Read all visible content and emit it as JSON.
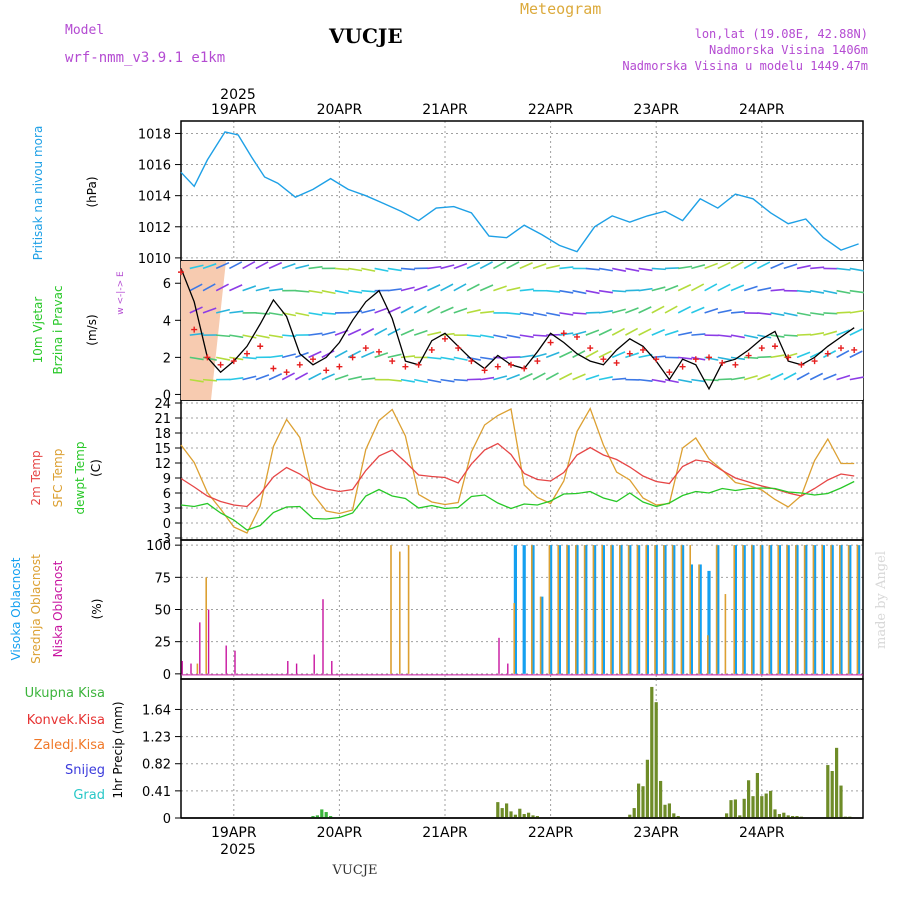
{
  "header": {
    "model_label": "Model",
    "model_name": "wrf-nmm_v3.9.1 e1km",
    "location": "VUCJE",
    "meteogram_label": "Meteogram",
    "coords": "lon,lat (19.08E, 42.88N)",
    "elevation": "Nadmorska Visina 1406m",
    "model_elevation": "Nadmorska Visina u modelu 1449.47m",
    "footer_location": "VUCJE",
    "credit": "made by Angel"
  },
  "colors": {
    "pressure": "#1ea0e6",
    "wind_speed": "#000000",
    "wind_dir": "#e61e1e",
    "t2m": "#e64646",
    "tsfc": "#dca032",
    "dewpt": "#28c828",
    "cloud_high": "#14a0f0",
    "cloud_mid": "#dca032",
    "cloud_low": "#c814a0",
    "precip_total": "#3cb43c",
    "precip_conv": "#e63232",
    "precip_strat": "#f07828",
    "precip_snow": "#3c3cdc",
    "precip_graupel": "#28c8c8",
    "precip_bar": "#6e8c28"
  },
  "axis_top": {
    "year": "2025",
    "days": [
      "19APR",
      "20APR",
      "21APR",
      "22APR",
      "23APR",
      "24APR"
    ]
  },
  "axis_bottom": {
    "year": "2025",
    "days": [
      "19APR",
      "20APR",
      "21APR",
      "22APR",
      "23APR",
      "24APR"
    ]
  },
  "chart_data": [
    {
      "type": "line",
      "ylabel_title": "Pritisak na nivou mora",
      "ylabel_unit": "(hPa)",
      "yticks": [
        1010,
        1012,
        1014,
        1016,
        1018
      ],
      "ylim": [
        1009.8,
        1018.8
      ],
      "x": [
        0,
        3,
        6,
        10,
        13,
        16,
        19,
        22,
        26,
        30,
        34,
        38,
        42,
        46,
        50,
        54,
        58,
        62,
        66,
        70,
        74,
        78,
        82,
        86,
        90,
        94,
        98,
        102,
        106,
        110,
        114,
        118,
        122,
        126,
        130,
        134,
        138,
        142,
        146,
        150,
        154
      ],
      "series": [
        {
          "name": "pressure",
          "values": [
            1015.5,
            1014.6,
            1016.3,
            1018.1,
            1017.9,
            1016.5,
            1015.2,
            1014.8,
            1013.9,
            1014.4,
            1015.1,
            1014.4,
            1014.0,
            1013.5,
            1013.0,
            1012.4,
            1013.2,
            1013.3,
            1012.9,
            1011.4,
            1011.3,
            1012.1,
            1011.5,
            1010.8,
            1010.4,
            1012.0,
            1012.7,
            1012.3,
            1012.7,
            1013.0,
            1012.4,
            1013.8,
            1013.2,
            1014.1,
            1013.8,
            1012.9,
            1012.2,
            1012.5,
            1011.3,
            1010.5,
            1010.9
          ]
        }
      ]
    },
    {
      "type": "line",
      "ylabel_title": "10m Vjetar Brzina i Pravac",
      "ylabel_unit": "(m/s)",
      "compass": "w <-|-> E",
      "yticks": [
        0,
        2,
        4,
        6
      ],
      "ylim": [
        -0.3,
        7.2
      ],
      "x": [
        0,
        3,
        6,
        9,
        12,
        15,
        18,
        21,
        24,
        27,
        30,
        33,
        36,
        39,
        42,
        45,
        48,
        51,
        54,
        57,
        60,
        63,
        66,
        69,
        72,
        75,
        78,
        81,
        84,
        87,
        90,
        93,
        96,
        99,
        102,
        105,
        108,
        111,
        114,
        117,
        120,
        123,
        126,
        129,
        132,
        135,
        138,
        141,
        144,
        147,
        150,
        153
      ],
      "series": [
        {
          "name": "wind_speed",
          "values": [
            6.8,
            5.0,
            2.0,
            1.2,
            1.8,
            2.6,
            3.8,
            5.1,
            4.2,
            2.2,
            1.6,
            2.0,
            2.8,
            4.0,
            5.0,
            5.6,
            4.1,
            1.8,
            1.6,
            2.9,
            3.3,
            2.6,
            1.9,
            1.4,
            2.1,
            1.6,
            1.4,
            2.3,
            3.3,
            2.8,
            2.2,
            1.8,
            1.6,
            2.4,
            3.0,
            2.6,
            1.8,
            0.8,
            1.9,
            1.6,
            0.3,
            1.7,
            1.9,
            2.4,
            3.0,
            3.4,
            1.8,
            1.6,
            2.0,
            2.6,
            3.1,
            3.6
          ]
        },
        {
          "name": "wind_dir_marks",
          "values": [
            6.6,
            3.5,
            2.0,
            1.6,
            1.8,
            2.2,
            2.6,
            1.4,
            1.2,
            1.6,
            1.9,
            1.3,
            1.5,
            2.0,
            2.5,
            2.3,
            1.8,
            1.5,
            1.6,
            2.4,
            3.0,
            2.5,
            1.8,
            1.3,
            1.5,
            1.6,
            1.4,
            1.8,
            2.8,
            3.3,
            3.1,
            2.5,
            1.9,
            1.7,
            2.2,
            2.4,
            1.9,
            1.2,
            1.5,
            1.9,
            2.0,
            1.7,
            1.6,
            2.1,
            2.5,
            2.6,
            2.0,
            1.6,
            1.8,
            2.2,
            2.5,
            2.4
          ]
        }
      ]
    },
    {
      "type": "line",
      "ylabel_title": [
        "2m Temp",
        "SFC Temp",
        "dewpt Temp"
      ],
      "ylabel_unit": "(C)",
      "yticks": [
        -3,
        0,
        3,
        6,
        9,
        12,
        15,
        18,
        21,
        24
      ],
      "ylim": [
        -3.4,
        24.6
      ],
      "x": [
        0,
        3,
        6,
        9,
        12,
        15,
        18,
        21,
        24,
        27,
        30,
        33,
        36,
        39,
        42,
        45,
        48,
        51,
        54,
        57,
        60,
        63,
        66,
        69,
        72,
        75,
        78,
        81,
        84,
        87,
        90,
        93,
        96,
        99,
        102,
        105,
        108,
        111,
        114,
        117,
        120,
        123,
        126,
        129,
        132,
        135,
        138,
        141,
        144,
        147,
        150,
        153
      ],
      "series": [
        {
          "name": "2m Temp",
          "values": [
            8.9,
            7.2,
            5.4,
            4.3,
            3.6,
            3.3,
            5.8,
            9.2,
            11.1,
            9.8,
            7.9,
            6.8,
            6.3,
            6.7,
            10.5,
            13.4,
            14.6,
            12.2,
            9.6,
            9.3,
            9.1,
            8.0,
            11.8,
            14.6,
            15.9,
            13.7,
            9.9,
            8.7,
            8.4,
            10.1,
            13.6,
            15.1,
            13.6,
            12.7,
            11.2,
            9.4,
            8.3,
            7.9,
            11.3,
            12.6,
            12.2,
            10.5,
            9.0,
            8.2,
            7.4,
            6.8,
            6.0,
            5.4,
            6.9,
            8.6,
            9.8,
            9.4
          ]
        },
        {
          "name": "SFC Temp",
          "values": [
            15.6,
            12.1,
            6.1,
            2.8,
            -0.8,
            -2.0,
            3.4,
            15.3,
            20.7,
            17.1,
            5.8,
            2.4,
            1.9,
            2.6,
            14.7,
            20.5,
            22.7,
            17.4,
            5.7,
            4.2,
            3.7,
            4.1,
            14.2,
            19.6,
            21.5,
            22.8,
            7.6,
            5.1,
            3.9,
            8.4,
            18.3,
            22.9,
            15.6,
            10.2,
            8.6,
            5.0,
            3.6,
            3.9,
            15.0,
            17.0,
            12.8,
            10.6,
            8.1,
            7.5,
            6.6,
            4.7,
            3.2,
            5.5,
            12.5,
            16.8,
            11.9,
            11.9
          ]
        },
        {
          "name": "dewpt Temp",
          "values": [
            3.6,
            3.3,
            3.9,
            2.0,
            0.6,
            -1.4,
            -0.5,
            2.1,
            3.2,
            3.3,
            0.9,
            0.8,
            1.1,
            2.0,
            5.4,
            6.7,
            5.4,
            4.9,
            3.0,
            3.5,
            2.9,
            3.1,
            5.3,
            5.6,
            4.0,
            2.9,
            3.8,
            3.6,
            4.4,
            5.8,
            5.9,
            6.3,
            5.0,
            4.3,
            6.0,
            4.2,
            3.3,
            4.0,
            5.5,
            6.3,
            6.0,
            6.9,
            6.5,
            6.9,
            7.0,
            6.9,
            6.2,
            6.0,
            5.6,
            5.9,
            7.0,
            8.3
          ]
        }
      ]
    },
    {
      "type": "bar",
      "ylabel_title": [
        "Visoka Oblacnost",
        "Srednja Oblacnost",
        "Niska Oblacnost"
      ],
      "ylabel_unit": "(%)",
      "yticks": [
        0,
        25,
        50,
        75,
        100
      ],
      "ylim": [
        -4,
        104
      ],
      "x": [
        0,
        2,
        4,
        6,
        8,
        10,
        12,
        14,
        16,
        18,
        20,
        22,
        24,
        26,
        28,
        30,
        32,
        34,
        36,
        38,
        40,
        42,
        44,
        46,
        48,
        50,
        52,
        54,
        56,
        58,
        60,
        62,
        64,
        66,
        68,
        70,
        72,
        74,
        76,
        78,
        80,
        82,
        84,
        86,
        88,
        90,
        92,
        94,
        96,
        98,
        100,
        102,
        104,
        106,
        108,
        110,
        112,
        114,
        116,
        118,
        120,
        122,
        124,
        126,
        128,
        130,
        132,
        134,
        136,
        138,
        140,
        142,
        144,
        146,
        148,
        150,
        152,
        154
      ],
      "series": [
        {
          "name": "Visoka Oblacnost",
          "values": [
            0,
            0,
            0,
            0,
            0,
            0,
            0,
            0,
            0,
            0,
            0,
            0,
            0,
            0,
            0,
            0,
            0,
            0,
            0,
            0,
            0,
            0,
            0,
            0,
            0,
            0,
            0,
            0,
            0,
            0,
            0,
            0,
            0,
            0,
            0,
            0,
            0,
            0,
            100,
            100,
            100,
            60,
            100,
            100,
            100,
            100,
            100,
            100,
            100,
            100,
            100,
            100,
            100,
            100,
            100,
            100,
            100,
            100,
            85,
            85,
            80,
            100,
            0,
            100,
            100,
            100,
            100,
            100,
            100,
            100,
            100,
            100,
            100,
            100,
            100,
            100,
            100,
            100
          ]
        },
        {
          "name": "Srednja Oblacnost",
          "values": [
            0,
            0,
            8,
            75,
            0,
            0,
            0,
            0,
            0,
            0,
            0,
            0,
            0,
            0,
            0,
            0,
            0,
            0,
            0,
            0,
            0,
            0,
            0,
            0,
            100,
            95,
            100,
            0,
            0,
            0,
            0,
            0,
            0,
            0,
            0,
            0,
            0,
            0,
            55,
            0,
            100,
            60,
            100,
            100,
            100,
            100,
            100,
            100,
            100,
            100,
            100,
            100,
            100,
            100,
            100,
            100,
            100,
            100,
            100,
            85,
            30,
            100,
            62,
            100,
            100,
            100,
            100,
            100,
            100,
            100,
            100,
            100,
            100,
            100,
            100,
            100,
            100,
            100
          ]
        },
        {
          "name": "Niska Oblacnost",
          "values": [
            10,
            8,
            40,
            50,
            0,
            22,
            18,
            0,
            0,
            0,
            0,
            0,
            10,
            8,
            0,
            15,
            58,
            10,
            0,
            0,
            0,
            0,
            0,
            0,
            0,
            0,
            0,
            0,
            0,
            0,
            0,
            0,
            0,
            0,
            0,
            0,
            28,
            8,
            0,
            0,
            0,
            0,
            0,
            0,
            0,
            0,
            0,
            0,
            0,
            0,
            0,
            0,
            0,
            0,
            0,
            0,
            0,
            0,
            0,
            0,
            0,
            0,
            0,
            0,
            0,
            0,
            0,
            0,
            0,
            0,
            0,
            0,
            0,
            0,
            0,
            0,
            0,
            0
          ]
        }
      ]
    },
    {
      "type": "bar",
      "ylabel_title": [
        "Ukupna Kisa",
        "Konvek.Kisa",
        "Zaledj.Kisa",
        "Snijeg",
        "Grad"
      ],
      "ylabel_unit": "1hr Precip (mm)",
      "yticks": [
        0,
        0.41,
        0.82,
        1.23,
        1.64
      ],
      "ylim": [
        0,
        2.1
      ],
      "x": [
        30,
        31,
        32,
        33,
        34,
        72,
        73,
        74,
        75,
        76,
        77,
        78,
        79,
        80,
        81,
        102,
        103,
        104,
        105,
        106,
        107,
        108,
        109,
        110,
        111,
        112,
        113,
        124,
        125,
        126,
        127,
        128,
        129,
        130,
        131,
        132,
        133,
        134,
        135,
        136,
        137,
        138,
        139,
        140,
        141,
        147,
        148,
        149,
        150,
        151,
        152
      ],
      "series": [
        {
          "name": "Ukupna Kisa",
          "values": [
            0.03,
            0.04,
            0.13,
            0.09,
            0.03,
            0.24,
            0.15,
            0.22,
            0.1,
            0.05,
            0.14,
            0.06,
            0.08,
            0.04,
            0.03,
            0.05,
            0.15,
            0.52,
            0.48,
            0.88,
            1.98,
            1.75,
            0.56,
            0.2,
            0.22,
            0.07,
            0.03,
            0.07,
            0.27,
            0.28,
            0.04,
            0.29,
            0.57,
            0.33,
            0.68,
            0.33,
            0.37,
            0.41,
            0.13,
            0.06,
            0.08,
            0.04,
            0.03,
            0.03,
            0.02,
            0.8,
            0.71,
            1.06,
            0.49,
            0.02,
            0.02
          ]
        }
      ]
    }
  ]
}
